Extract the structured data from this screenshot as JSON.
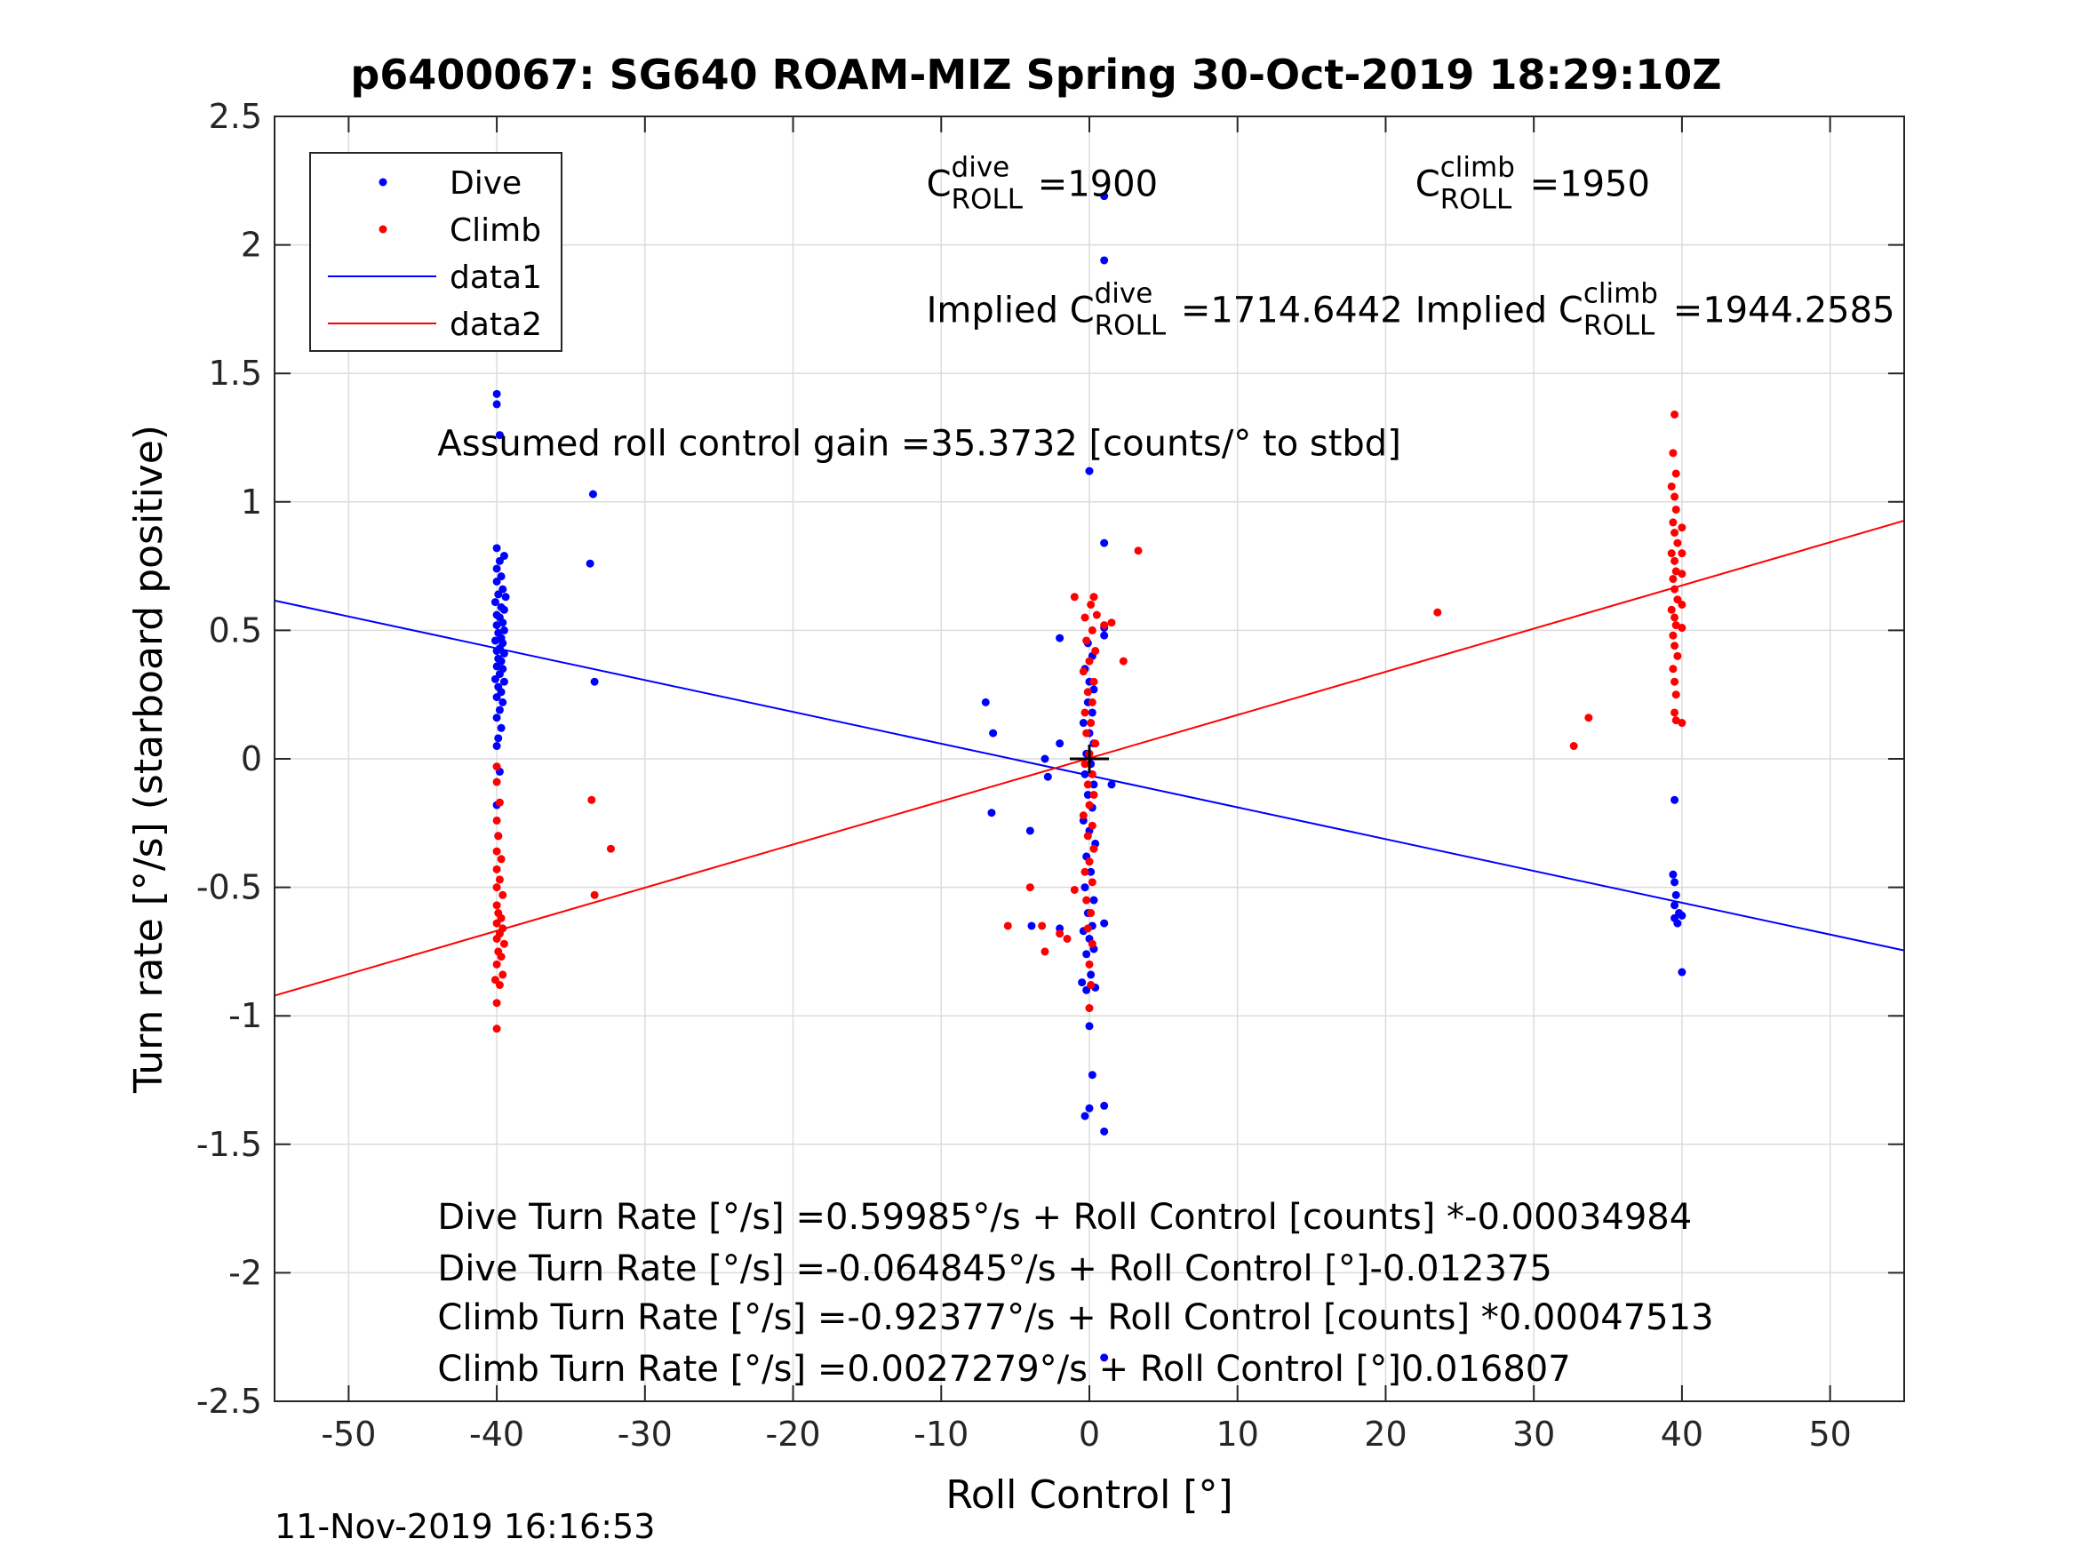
{
  "chart_data": {
    "type": "scatter",
    "title": "p6400067: SG640 ROAM-MIZ Spring 30-Oct-2019 18:29:10Z",
    "xlabel": "Roll Control [°]",
    "ylabel": "Turn rate [°/s] (starboard positive)",
    "xlim": [
      -55,
      55
    ],
    "ylim": [
      -2.5,
      2.5
    ],
    "xticks": [
      -50,
      -40,
      -30,
      -20,
      -10,
      0,
      10,
      20,
      30,
      40,
      50
    ],
    "xtick_labels": [
      "-50",
      "-40",
      "-30",
      "-20",
      "-10",
      "0",
      "10",
      "20",
      "30",
      "40",
      "50"
    ],
    "yticks": [
      -2.5,
      -2,
      -1.5,
      -1,
      -0.5,
      0,
      0.5,
      1,
      1.5,
      2,
      2.5
    ],
    "ytick_labels": [
      "-2.5",
      "-2",
      "-1.5",
      "-1",
      "-0.5",
      "0",
      "0.5",
      "1",
      "1.5",
      "2",
      "2.5"
    ],
    "grid": true,
    "legend_position": "top-left",
    "colors": {
      "dive": "#0000ff",
      "climb": "#ff0000",
      "text": "#262626",
      "grid": "#dcdcdc"
    },
    "series": [
      {
        "name": "Dive",
        "kind": "points",
        "color": "#0000ff",
        "points": [
          [
            -40,
            1.42
          ],
          [
            -40,
            1.38
          ],
          [
            -39.8,
            1.26
          ],
          [
            -40,
            0.82
          ],
          [
            -39.5,
            0.79
          ],
          [
            -39.8,
            0.77
          ],
          [
            -40,
            0.74
          ],
          [
            -39.7,
            0.71
          ],
          [
            -40,
            0.69
          ],
          [
            -39.6,
            0.66
          ],
          [
            -39.9,
            0.64
          ],
          [
            -39.4,
            0.63
          ],
          [
            -40.1,
            0.61
          ],
          [
            -39.7,
            0.59
          ],
          [
            -39.5,
            0.58
          ],
          [
            -40,
            0.56
          ],
          [
            -39.8,
            0.55
          ],
          [
            -39.6,
            0.53
          ],
          [
            -40,
            0.52
          ],
          [
            -39.5,
            0.5
          ],
          [
            -39.9,
            0.49
          ],
          [
            -39.7,
            0.47
          ],
          [
            -40.1,
            0.46
          ],
          [
            -39.6,
            0.45
          ],
          [
            -39.8,
            0.43
          ],
          [
            -40,
            0.42
          ],
          [
            -39.5,
            0.41
          ],
          [
            -39.9,
            0.39
          ],
          [
            -39.7,
            0.38
          ],
          [
            -40,
            0.36
          ],
          [
            -39.6,
            0.35
          ],
          [
            -39.8,
            0.33
          ],
          [
            -40.1,
            0.31
          ],
          [
            -39.5,
            0.3
          ],
          [
            -39.9,
            0.28
          ],
          [
            -39.7,
            0.26
          ],
          [
            -40,
            0.24
          ],
          [
            -39.6,
            0.22
          ],
          [
            -39.8,
            0.19
          ],
          [
            -40,
            0.16
          ],
          [
            -39.7,
            0.12
          ],
          [
            -39.9,
            0.08
          ],
          [
            -40,
            0.05
          ],
          [
            -39.8,
            -0.05
          ],
          [
            -40,
            -0.18
          ],
          [
            -39.9,
            -0.3
          ],
          [
            -33.5,
            1.03
          ],
          [
            -33.7,
            0.76
          ],
          [
            -33.4,
            0.3
          ],
          [
            0,
            1.12
          ],
          [
            1,
            2.19
          ],
          [
            1,
            1.94
          ],
          [
            1,
            0.84
          ],
          [
            1,
            0.51
          ],
          [
            1,
            0.48
          ],
          [
            1.5,
            -0.1
          ],
          [
            1,
            -0.64
          ],
          [
            1,
            -2.33
          ],
          [
            1,
            -1.35
          ],
          [
            1,
            -1.45
          ],
          [
            0.2,
            -1.23
          ],
          [
            0,
            -1.36
          ],
          [
            -0.3,
            -1.39
          ],
          [
            0,
            -1.04
          ],
          [
            -0.2,
            -0.9
          ],
          [
            0.4,
            -0.89
          ],
          [
            -0.5,
            -0.87
          ],
          [
            0.1,
            -0.84
          ],
          [
            -0.2,
            -0.76
          ],
          [
            0.3,
            -0.74
          ],
          [
            0,
            -0.7
          ],
          [
            -0.4,
            -0.67
          ],
          [
            0.2,
            -0.65
          ],
          [
            -0.1,
            -0.6
          ],
          [
            0.3,
            -0.55
          ],
          [
            -0.3,
            -0.5
          ],
          [
            0.1,
            -0.44
          ],
          [
            -0.2,
            -0.38
          ],
          [
            0.4,
            -0.33
          ],
          [
            0,
            -0.28
          ],
          [
            -0.4,
            -0.24
          ],
          [
            0.2,
            -0.19
          ],
          [
            -0.1,
            -0.14
          ],
          [
            0.3,
            -0.1
          ],
          [
            -0.3,
            -0.06
          ],
          [
            0.1,
            -0.02
          ],
          [
            -0.2,
            0.02
          ],
          [
            0.3,
            0.06
          ],
          [
            0,
            0.1
          ],
          [
            -0.4,
            0.14
          ],
          [
            0.2,
            0.18
          ],
          [
            -0.1,
            0.22
          ],
          [
            0.3,
            0.27
          ],
          [
            0,
            0.3
          ],
          [
            -0.3,
            0.35
          ],
          [
            0.2,
            0.4
          ],
          [
            -0.1,
            0.45
          ],
          [
            -7,
            0.22
          ],
          [
            -6.5,
            0.1
          ],
          [
            -6.6,
            -0.21
          ],
          [
            -4,
            -0.28
          ],
          [
            -2,
            0.06
          ],
          [
            -3,
            0.0
          ],
          [
            -2.8,
            -0.07
          ],
          [
            -3.9,
            -0.65
          ],
          [
            -2,
            0.47
          ],
          [
            -2,
            -0.66
          ],
          [
            39.5,
            -0.16
          ],
          [
            39.4,
            -0.45
          ],
          [
            39.5,
            -0.48
          ],
          [
            39.6,
            -0.53
          ],
          [
            39.5,
            -0.57
          ],
          [
            39.8,
            -0.6
          ],
          [
            39.5,
            -0.62
          ],
          [
            39.7,
            -0.64
          ],
          [
            40,
            -0.61
          ],
          [
            40,
            -0.83
          ]
        ]
      },
      {
        "name": "Climb",
        "kind": "points",
        "color": "#ff0000",
        "points": [
          [
            -40,
            -1.05
          ],
          [
            -40,
            -0.95
          ],
          [
            -39.8,
            -0.88
          ],
          [
            -40.1,
            -0.86
          ],
          [
            -39.6,
            -0.84
          ],
          [
            -40,
            -0.8
          ],
          [
            -39.7,
            -0.77
          ],
          [
            -39.9,
            -0.75
          ],
          [
            -39.5,
            -0.72
          ],
          [
            -40,
            -0.7
          ],
          [
            -39.8,
            -0.68
          ],
          [
            -39.6,
            -0.66
          ],
          [
            -40,
            -0.64
          ],
          [
            -39.7,
            -0.62
          ],
          [
            -39.9,
            -0.6
          ],
          [
            -40,
            -0.57
          ],
          [
            -39.6,
            -0.53
          ],
          [
            -40,
            -0.5
          ],
          [
            -39.8,
            -0.47
          ],
          [
            -40,
            -0.43
          ],
          [
            -39.7,
            -0.39
          ],
          [
            -40,
            -0.36
          ],
          [
            -39.9,
            -0.3
          ],
          [
            -40,
            -0.24
          ],
          [
            -39.8,
            -0.17
          ],
          [
            -40,
            -0.09
          ],
          [
            -40,
            -0.03
          ],
          [
            -33.6,
            -0.16
          ],
          [
            -33.4,
            -0.53
          ],
          [
            -32.3,
            -0.35
          ],
          [
            -1,
            0.63
          ],
          [
            1,
            0.52
          ],
          [
            0.3,
            0.63
          ],
          [
            0.1,
            0.6
          ],
          [
            0.5,
            0.56
          ],
          [
            -0.3,
            0.55
          ],
          [
            0.2,
            0.5
          ],
          [
            -0.2,
            0.46
          ],
          [
            0.4,
            0.42
          ],
          [
            0,
            0.38
          ],
          [
            -0.4,
            0.34
          ],
          [
            0.3,
            0.3
          ],
          [
            -0.1,
            0.26
          ],
          [
            0.2,
            0.22
          ],
          [
            -0.3,
            0.18
          ],
          [
            0.1,
            0.14
          ],
          [
            -0.2,
            0.1
          ],
          [
            0.4,
            0.06
          ],
          [
            0,
            0.02
          ],
          [
            -0.3,
            -0.02
          ],
          [
            0.2,
            -0.06
          ],
          [
            -0.1,
            -0.1
          ],
          [
            0.3,
            -0.14
          ],
          [
            0,
            -0.18
          ],
          [
            -0.4,
            -0.22
          ],
          [
            0.2,
            -0.26
          ],
          [
            -0.1,
            -0.3
          ],
          [
            0.3,
            -0.35
          ],
          [
            0,
            -0.4
          ],
          [
            -0.3,
            -0.44
          ],
          [
            0.2,
            -0.48
          ],
          [
            -0.2,
            -0.55
          ],
          [
            0.1,
            -0.6
          ],
          [
            -0.1,
            -0.66
          ],
          [
            0.2,
            -0.72
          ],
          [
            0,
            -0.8
          ],
          [
            0.1,
            -0.88
          ],
          [
            0,
            -0.97
          ],
          [
            1.5,
            0.53
          ],
          [
            2.3,
            0.38
          ],
          [
            3.3,
            0.81
          ],
          [
            -1,
            -0.51
          ],
          [
            -1.5,
            -0.7
          ],
          [
            -3,
            -0.75
          ],
          [
            -3.2,
            -0.65
          ],
          [
            -4,
            -0.5
          ],
          [
            -5.5,
            -0.65
          ],
          [
            -2,
            -0.68
          ],
          [
            23.5,
            0.57
          ],
          [
            32.7,
            0.05
          ],
          [
            33.7,
            0.16
          ],
          [
            39.5,
            1.34
          ],
          [
            39.4,
            1.19
          ],
          [
            39.6,
            1.11
          ],
          [
            39.3,
            1.06
          ],
          [
            39.5,
            1.02
          ],
          [
            39.6,
            0.97
          ],
          [
            39.4,
            0.92
          ],
          [
            39.5,
            0.88
          ],
          [
            39.7,
            0.84
          ],
          [
            39.3,
            0.8
          ],
          [
            39.5,
            0.77
          ],
          [
            39.6,
            0.73
          ],
          [
            39.4,
            0.7
          ],
          [
            39.5,
            0.66
          ],
          [
            39.7,
            0.62
          ],
          [
            39.3,
            0.58
          ],
          [
            39.5,
            0.55
          ],
          [
            39.6,
            0.52
          ],
          [
            39.4,
            0.48
          ],
          [
            39.5,
            0.44
          ],
          [
            39.7,
            0.4
          ],
          [
            39.4,
            0.35
          ],
          [
            39.5,
            0.3
          ],
          [
            39.6,
            0.25
          ],
          [
            39.5,
            0.18
          ],
          [
            39.6,
            0.15
          ],
          [
            40,
            0.9
          ],
          [
            40,
            0.8
          ],
          [
            40,
            0.72
          ],
          [
            40,
            0.6
          ],
          [
            40,
            0.51
          ],
          [
            40,
            0.14
          ]
        ]
      },
      {
        "name": "data1",
        "kind": "line",
        "color": "#0000ff",
        "x": [
          -55,
          55
        ],
        "y": [
          0.6159,
          -0.7456
        ]
      },
      {
        "name": "data2",
        "kind": "line",
        "color": "#ff0000",
        "x": [
          -55,
          55
        ],
        "y": [
          -0.9214,
          0.9268
        ]
      }
    ],
    "marker": {
      "x": 0,
      "y": 0,
      "symbol": "+",
      "color": "#000000"
    },
    "annotations": [
      {
        "id": "c-dive",
        "x": -11,
        "y": 2.19,
        "base": "C",
        "sup": "dive",
        "sub": "ROLL",
        "value": " =1900"
      },
      {
        "id": "c-climb",
        "x": 22,
        "y": 2.19,
        "base": "C",
        "sup": "climb",
        "sub": "ROLL",
        "value": " =1950"
      },
      {
        "id": "implied-dive",
        "x": -11,
        "y": 1.7,
        "base": "Implied C",
        "sup": "dive",
        "sub": "ROLL",
        "value": " =1714.6442"
      },
      {
        "id": "implied-climb",
        "x": 22,
        "y": 1.7,
        "base": "Implied C",
        "sup": "climb",
        "sub": "ROLL",
        "value": " =1944.2585"
      },
      {
        "id": "gain",
        "x": -44,
        "y": 1.18,
        "text": "Assumed roll control gain =35.3732 [counts/° to stbd]"
      },
      {
        "id": "fit-1",
        "x": -44,
        "y": -1.83,
        "text": "Dive Turn Rate [°/s] =0.59985°/s + Roll Control [counts] *-0.00034984"
      },
      {
        "id": "fit-2",
        "x": -44,
        "y": -2.03,
        "text": "Dive Turn Rate [°/s] =-0.064845°/s + Roll Control [°]-0.012375"
      },
      {
        "id": "fit-3",
        "x": -44,
        "y": -2.22,
        "text": "Climb Turn Rate [°/s] =-0.92377°/s + Roll Control [counts] *0.00047513"
      },
      {
        "id": "fit-4",
        "x": -44,
        "y": -2.42,
        "text": "Climb Turn Rate [°/s] =0.0027279°/s + Roll Control [°]0.016807"
      }
    ]
  },
  "timestamp": "11-Nov-2019 16:16:53"
}
